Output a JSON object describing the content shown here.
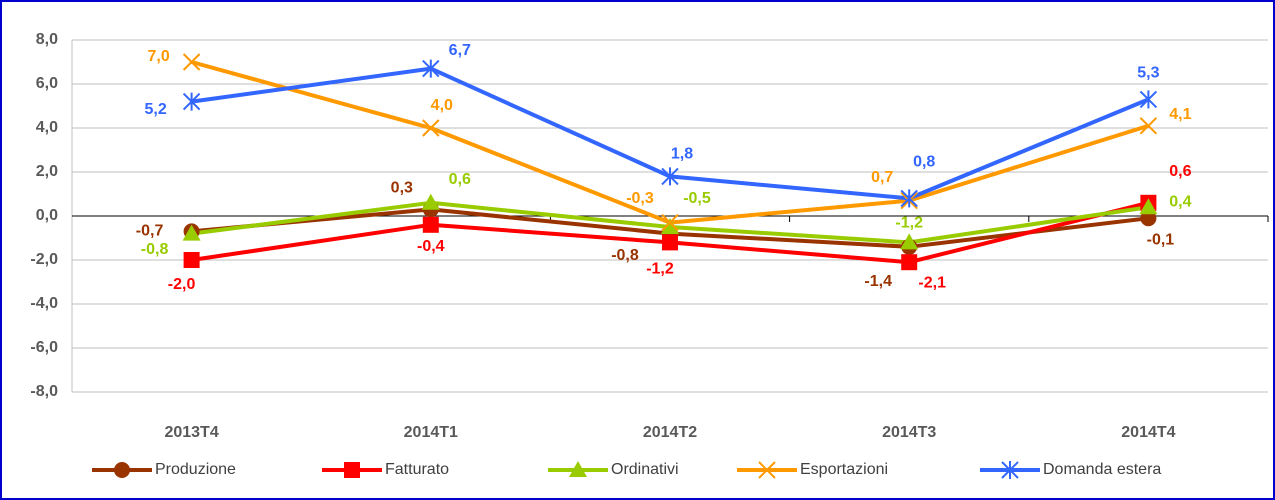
{
  "chart_data": {
    "type": "line",
    "categories": [
      "2013T4",
      "2014T1",
      "2014T2",
      "2014T3",
      "2014T4"
    ],
    "series": [
      {
        "name": "Produzione",
        "color": "#993300",
        "values": [
          -0.7,
          0.3,
          -0.8,
          -1.4,
          -0.1
        ],
        "value_labels": [
          "-0,7",
          "0,3",
          "-0,8",
          "-1,4",
          "-0,1"
        ]
      },
      {
        "name": "Fatturato",
        "color": "#ff0000",
        "values": [
          -2.0,
          -0.4,
          -1.2,
          -2.1,
          0.6
        ],
        "value_labels": [
          "-2,0",
          "-0,4",
          "-1,2",
          "-2,1",
          "0,6"
        ]
      },
      {
        "name": "Ordinativi",
        "color": "#99cc00",
        "values": [
          -0.8,
          0.6,
          -0.5,
          -1.2,
          0.4
        ],
        "value_labels": [
          "-0,8",
          "0,6",
          "-0,5",
          "-1,2",
          "0,4"
        ]
      },
      {
        "name": "Esportazioni",
        "color": "#ff9900",
        "values": [
          7.0,
          4.0,
          -0.3,
          0.7,
          4.1
        ],
        "value_labels": [
          "7,0",
          "4,0",
          "-0,3",
          "0,7",
          "4,1"
        ]
      },
      {
        "name": "Domanda estera",
        "color": "#3366ff",
        "values": [
          5.2,
          6.7,
          1.8,
          0.8,
          5.3
        ],
        "value_labels": [
          "5,2",
          "6,7",
          "1,8",
          "0,8",
          "5,3"
        ]
      }
    ],
    "ylim": [
      -8,
      8
    ],
    "yticks": [
      {
        "value": -8,
        "label": "-8,0"
      },
      {
        "value": -6,
        "label": "-6,0"
      },
      {
        "value": -4,
        "label": "-4,0"
      },
      {
        "value": -2,
        "label": "-2,0"
      },
      {
        "value": 0,
        "label": "0,0"
      },
      {
        "value": 2,
        "label": "2,0"
      },
      {
        "value": 4,
        "label": "4,0"
      },
      {
        "value": 6,
        "label": "6,0"
      },
      {
        "value": 8,
        "label": "8,0"
      }
    ],
    "grid": true,
    "legend": "bottom"
  }
}
